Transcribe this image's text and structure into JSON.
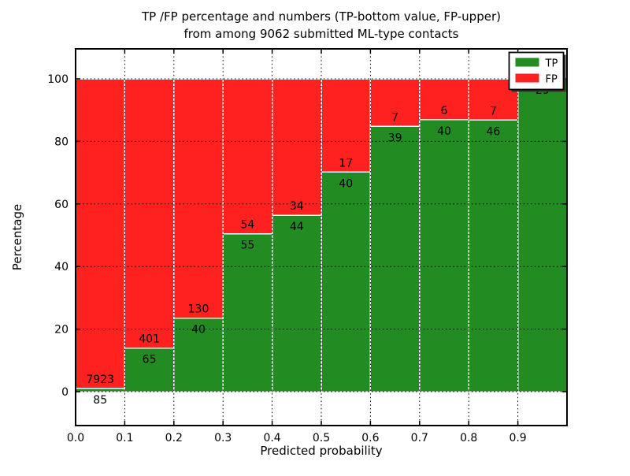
{
  "chart_data": {
    "type": "bar",
    "stacked": true,
    "title_line1": "TP /FP percentage and numbers (TP-bottom value, FP-upper)",
    "title_line2": "from among 9062 submitted ML-type contacts",
    "xlabel": "Predicted probability",
    "ylabel": "Percentage",
    "total_contacts": 9062,
    "xlim": [
      0.0,
      1.0
    ],
    "ylim": [
      -11,
      110
    ],
    "bin_width": 0.1,
    "bin_edges": [
      0.0,
      0.1,
      0.2,
      0.3,
      0.4,
      0.5,
      0.6,
      0.7,
      0.8,
      0.9,
      1.0
    ],
    "x_tick_labels": [
      "0.0",
      "0.1",
      "0.2",
      "0.3",
      "0.4",
      "0.5",
      "0.6",
      "0.7",
      "0.8",
      "0.9"
    ],
    "y_ticks": [
      0,
      20,
      40,
      60,
      80,
      100
    ],
    "y_tick_labels": [
      "0",
      "20",
      "40",
      "60",
      "80",
      "100"
    ],
    "grid": true,
    "series": [
      {
        "name": "TP",
        "color": "#228b22",
        "counts": [
          85,
          65,
          40,
          55,
          44,
          40,
          39,
          40,
          46,
          29
        ],
        "percent": [
          1.06,
          13.95,
          23.53,
          50.46,
          56.41,
          70.18,
          84.78,
          86.96,
          86.79,
          100.0
        ]
      },
      {
        "name": "FP",
        "color": "#ff2020",
        "counts": [
          7923,
          401,
          130,
          54,
          34,
          17,
          7,
          6,
          7,
          0
        ],
        "percent": [
          98.94,
          86.05,
          76.47,
          49.54,
          43.59,
          29.82,
          15.22,
          13.04,
          13.21,
          0.0
        ]
      }
    ],
    "annotations": {
      "fp_labels": [
        "7923",
        "401",
        "130",
        "54",
        "34",
        "17",
        "7",
        "6",
        "7",
        ""
      ],
      "tp_labels": [
        "85",
        "65",
        "40",
        "55",
        "44",
        "40",
        "39",
        "40",
        "46",
        "29"
      ]
    },
    "legend": {
      "position": "upper right",
      "entries": [
        {
          "label": "TP",
          "color": "#228b22"
        },
        {
          "label": "FP",
          "color": "#ff2020"
        }
      ]
    }
  }
}
